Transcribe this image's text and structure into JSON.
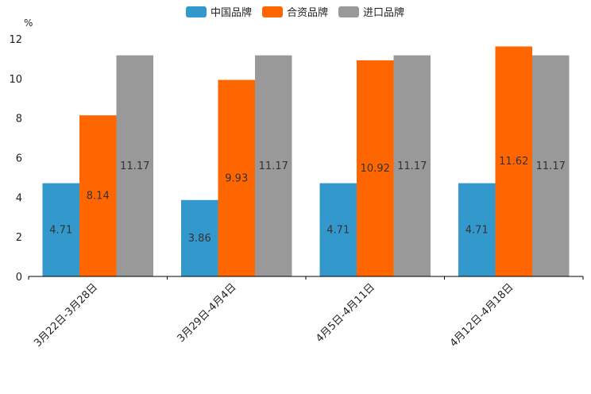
{
  "chart_data": {
    "type": "bar",
    "title": "",
    "xlabel": "",
    "ylabel": "%",
    "ylim": [
      0,
      12
    ],
    "yticks": [
      0,
      2,
      4,
      6,
      8,
      10,
      12
    ],
    "grid": false,
    "legend_position": "top-center",
    "categories": [
      "3月22日-3月28日",
      "3月29日-4月4日",
      "4月5日-4月11日",
      "4月12日-4月18日"
    ],
    "series": [
      {
        "name": "中国品牌",
        "color": "#3399cc",
        "values": [
          4.71,
          3.86,
          4.71,
          4.71
        ],
        "labels": [
          "4.71",
          "3.86",
          "4.71",
          "4.71"
        ]
      },
      {
        "name": "合资品牌",
        "color": "#ff6600",
        "values": [
          8.14,
          9.93,
          10.92,
          11.62
        ],
        "labels": [
          "8.14",
          "9.93",
          "10.92",
          "11.62"
        ]
      },
      {
        "name": "进口品牌",
        "color": "#999999",
        "values": [
          11.17,
          11.17,
          11.17,
          11.17
        ],
        "labels": [
          "11.17",
          "11.17",
          "11.17",
          "11.17"
        ]
      }
    ]
  }
}
